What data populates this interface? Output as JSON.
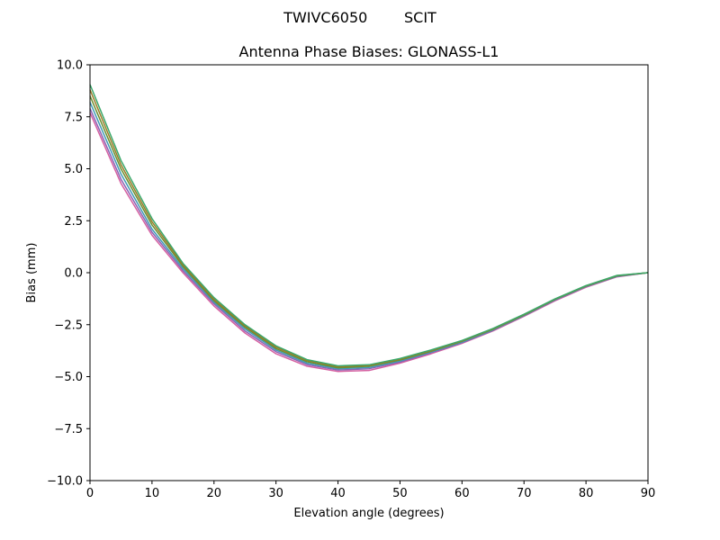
{
  "figure": {
    "suptitle": "TWIVC6050        SCIT"
  },
  "chart_data": {
    "type": "line",
    "title": "Antenna Phase Biases: GLONASS-L1",
    "xlabel": "Elevation angle (degrees)",
    "ylabel": "Bias (mm)",
    "xlim": [
      0,
      90
    ],
    "ylim": [
      -10,
      10
    ],
    "xticks": [
      0,
      10,
      20,
      30,
      40,
      50,
      60,
      70,
      80,
      90
    ],
    "yticks": [
      10.0,
      7.5,
      5.0,
      2.5,
      0.0,
      -2.5,
      -5.0,
      -7.5,
      -10.0
    ],
    "xtick_labels": [
      "0",
      "10",
      "20",
      "30",
      "40",
      "50",
      "60",
      "70",
      "80",
      "90"
    ],
    "ytick_labels": [
      "10.0",
      "7.5",
      "5.0",
      "2.5",
      "0.0",
      "−2.5",
      "−5.0",
      "−7.5",
      "−10.0"
    ],
    "grid": false,
    "x": [
      0,
      5,
      10,
      15,
      20,
      25,
      30,
      35,
      40,
      45,
      50,
      55,
      60,
      65,
      70,
      75,
      80,
      85,
      90
    ],
    "series": [
      {
        "color": "#d45fa0",
        "values": [
          7.7,
          4.3,
          1.8,
          0.0,
          -1.6,
          -2.9,
          -3.9,
          -4.5,
          -4.75,
          -4.7,
          -4.35,
          -3.9,
          -3.4,
          -2.8,
          -2.1,
          -1.35,
          -0.7,
          -0.2,
          0.0
        ]
      },
      {
        "color": "#8a63b4",
        "values": [
          7.9,
          4.5,
          1.95,
          0.1,
          -1.5,
          -2.8,
          -3.8,
          -4.42,
          -4.68,
          -4.62,
          -4.3,
          -3.85,
          -3.37,
          -2.77,
          -2.07,
          -1.32,
          -0.67,
          -0.18,
          0.0
        ]
      },
      {
        "color": "#3f9bb5",
        "values": [
          8.2,
          4.75,
          2.1,
          0.2,
          -1.42,
          -2.7,
          -3.72,
          -4.35,
          -4.62,
          -4.56,
          -4.25,
          -3.82,
          -3.34,
          -2.75,
          -2.05,
          -1.3,
          -0.66,
          -0.17,
          0.0
        ]
      },
      {
        "color": "#6a8f2f",
        "values": [
          8.5,
          5.0,
          2.3,
          0.3,
          -1.35,
          -2.62,
          -3.65,
          -4.28,
          -4.57,
          -4.5,
          -4.2,
          -3.78,
          -3.3,
          -2.72,
          -2.03,
          -1.28,
          -0.64,
          -0.15,
          0.0
        ]
      },
      {
        "color": "#9c7c2a",
        "values": [
          8.8,
          5.2,
          2.45,
          0.38,
          -1.28,
          -2.56,
          -3.58,
          -4.22,
          -4.52,
          -4.46,
          -4.16,
          -3.75,
          -3.28,
          -2.7,
          -2.01,
          -1.27,
          -0.63,
          -0.14,
          0.0
        ]
      },
      {
        "color": "#3aa86a",
        "values": [
          9.05,
          5.4,
          2.6,
          0.45,
          -1.2,
          -2.5,
          -3.52,
          -4.18,
          -4.48,
          -4.43,
          -4.13,
          -3.72,
          -3.26,
          -2.68,
          -2.0,
          -1.26,
          -0.62,
          -0.13,
          0.0
        ]
      }
    ]
  }
}
